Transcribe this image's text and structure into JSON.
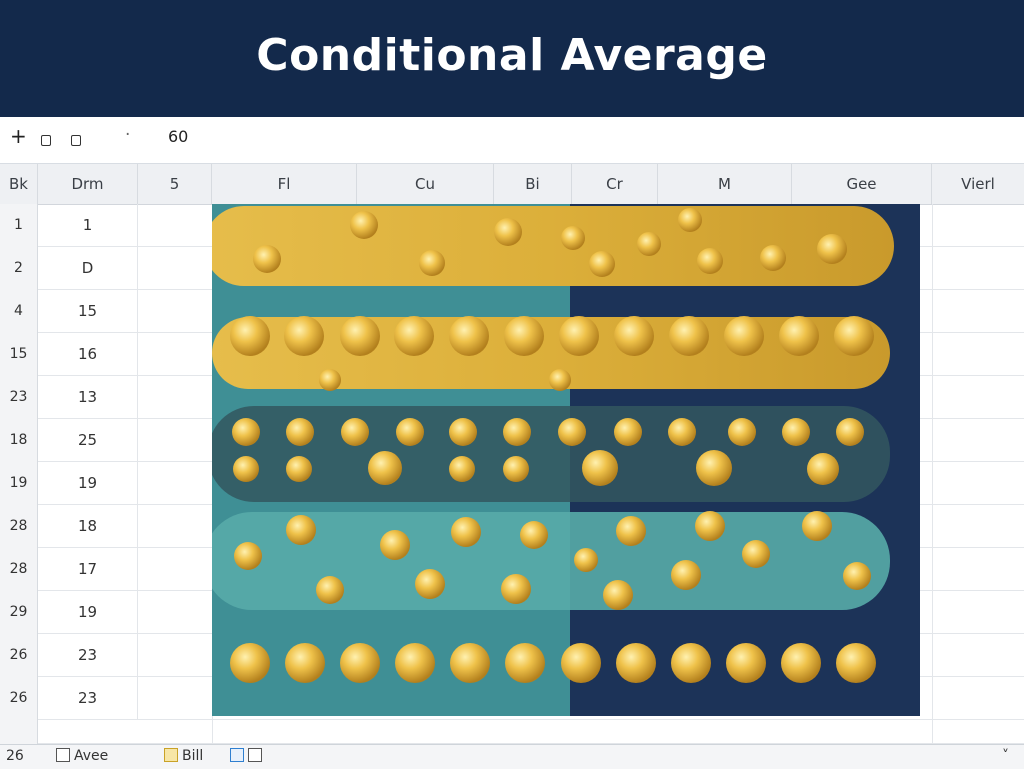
{
  "title": "Conditional Average",
  "toolbar": {
    "plus": "+",
    "dot": "·",
    "value": "60"
  },
  "columns": [
    "Bk",
    "Drm",
    "5",
    "Fl",
    "Cu",
    "Bi",
    "Cr",
    "M",
    "Gee",
    "Vierl"
  ],
  "rows": [
    {
      "head": "1",
      "value": "1"
    },
    {
      "head": "2",
      "value": "D"
    },
    {
      "head": "4",
      "value": "15"
    },
    {
      "head": "15",
      "value": "16"
    },
    {
      "head": "23",
      "value": "13"
    },
    {
      "head": "18",
      "value": "25"
    },
    {
      "head": "19",
      "value": "19"
    },
    {
      "head": "28",
      "value": "18"
    },
    {
      "head": "28",
      "value": "17"
    },
    {
      "head": "29",
      "value": "19"
    },
    {
      "head": "26",
      "value": "23"
    },
    {
      "head": "26",
      "value": "23"
    }
  ],
  "status": {
    "row": "26",
    "sheet1": "Avee",
    "sheet2": "Bill",
    "chevron": "˅"
  },
  "colors": {
    "title_bg": "#13294b",
    "navy": "#1c3358",
    "teal": "#3f8f95",
    "gold": "#e2b43c"
  },
  "icons": [
    "plus-icon",
    "square-icon",
    "square-icon",
    "chevron-down-icon"
  ]
}
